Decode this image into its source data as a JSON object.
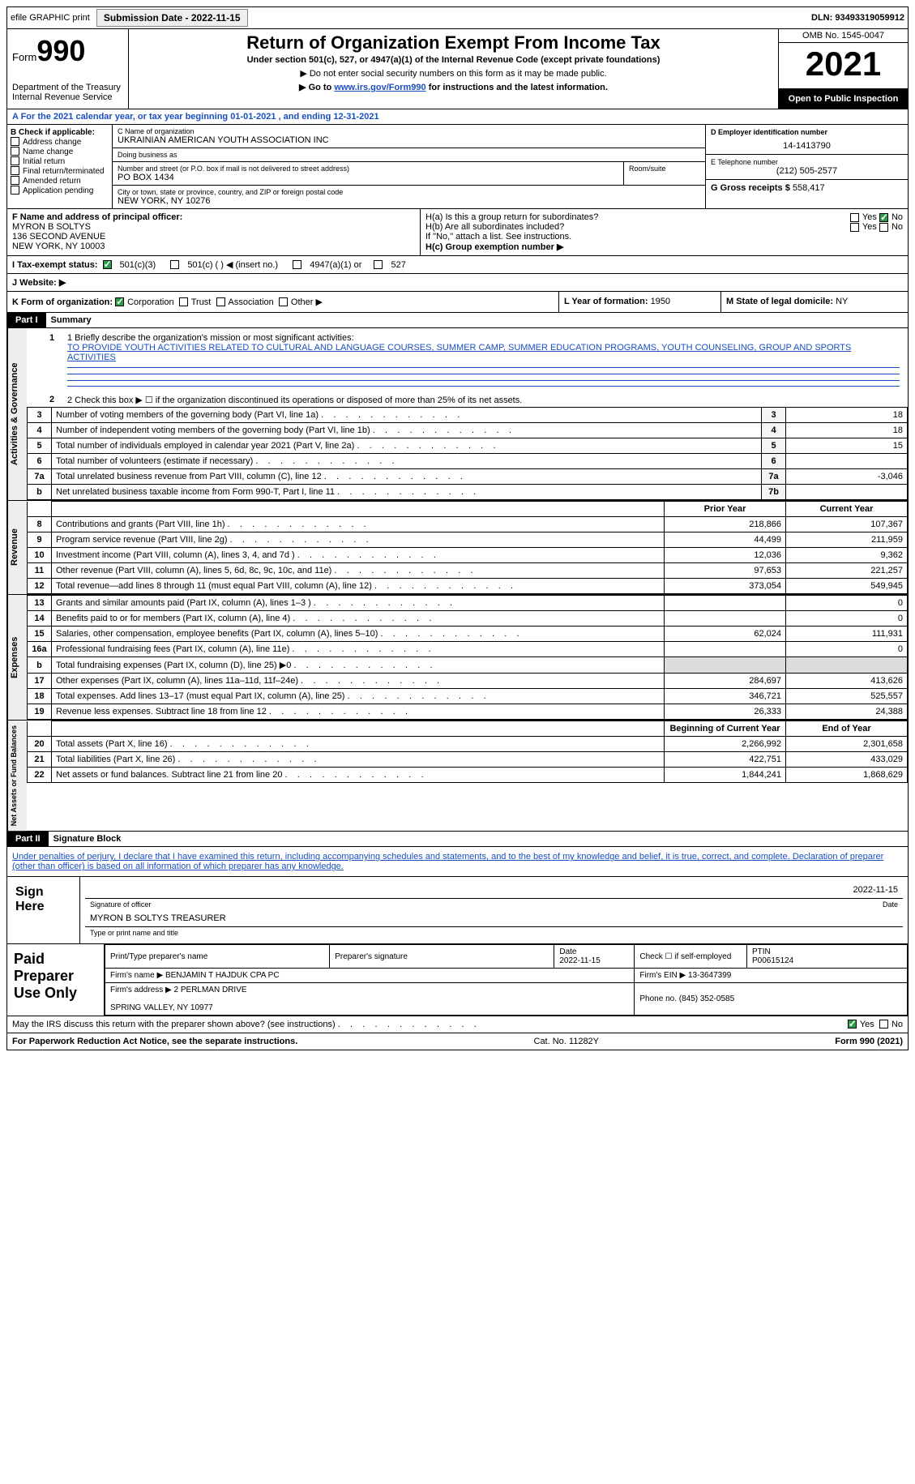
{
  "colors": {
    "link": "#1a4fbf",
    "check": "#2a9d4a",
    "black": "#000000",
    "grey": "#dddddd"
  },
  "topbar": {
    "efile": "efile GRAPHIC print",
    "submission_label": "Submission Date - 2022-11-15",
    "dln": "DLN: 93493319059912"
  },
  "header": {
    "form_prefix": "Form",
    "form_num": "990",
    "dept": "Department of the Treasury\nInternal Revenue Service",
    "title": "Return of Organization Exempt From Income Tax",
    "sub1": "Under section 501(c), 527, or 4947(a)(1) of the Internal Revenue Code (except private foundations)",
    "sub2": "▶ Do not enter social security numbers on this form as it may be made public.",
    "sub3_pre": "▶ Go to ",
    "sub3_link": "www.irs.gov/Form990",
    "sub3_post": " for instructions and the latest information.",
    "omb": "OMB No. 1545-0047",
    "year": "2021",
    "open": "Open to Public Inspection"
  },
  "rowA": "A  For the 2021 calendar year, or tax year beginning 01-01-2021   , and ending 12-31-2021",
  "secB": {
    "label": "B Check if applicable:",
    "opts": [
      "Address change",
      "Name change",
      "Initial return",
      "Final return/terminated",
      "Amended return",
      "Application pending"
    ],
    "c_name_lbl": "C Name of organization",
    "c_name": "UKRAINIAN AMERICAN YOUTH ASSOCIATION INC",
    "dba_lbl": "Doing business as",
    "dba": "",
    "addr_lbl": "Number and street (or P.O. box if mail is not delivered to street address)",
    "room_lbl": "Room/suite",
    "addr": "PO BOX 1434",
    "city_lbl": "City or town, state or province, country, and ZIP or foreign postal code",
    "city": "NEW YORK, NY  10276",
    "d_lbl": "D Employer identification number",
    "d": "14-1413790",
    "e_lbl": "E Telephone number",
    "e": "(212) 505-2577",
    "g_lbl": "G Gross receipts $ ",
    "g": "558,417"
  },
  "secF": {
    "f_lbl": "F Name and address of principal officer:",
    "f": "MYRON B SOLTYS\n136 SECOND AVENUE\nNEW YORK, NY  10003",
    "ha": "H(a)  Is this a group return for subordinates?",
    "ha_yes": "Yes",
    "ha_no": "No",
    "hb": "H(b)  Are all subordinates included?",
    "hb_note": "If \"No,\" attach a list. See instructions.",
    "hc": "H(c)  Group exemption number ▶"
  },
  "secI": {
    "lbl": "I    Tax-exempt status:",
    "o1": "501(c)(3)",
    "o2": "501(c) (  ) ◀ (insert no.)",
    "o3": "4947(a)(1) or",
    "o4": "527"
  },
  "secJ": "J   Website: ▶",
  "secK": {
    "k": "K Form of organization:",
    "opts": [
      "Corporation",
      "Trust",
      "Association",
      "Other ▶"
    ],
    "l_lbl": "L Year of formation: ",
    "l": "1950",
    "m_lbl": "M State of legal domicile: ",
    "m": "NY"
  },
  "part1": {
    "bar": "Part I",
    "title": "Summary"
  },
  "mission_lbl": "1  Briefly describe the organization's mission or most significant activities:",
  "mission": "TO PROVIDE YOUTH ACTIVITIES RELATED TO CULTURAL AND LANGUAGE COURSES, SUMMER CAMP, SUMMER EDUCATION PROGRAMS, YOUTH COUNSELING, GROUP AND SPORTS ACTIVITIES",
  "line2": "2    Check this box ▶ ☐  if the organization discontinued its operations or disposed of more than 25% of its net assets.",
  "sides": {
    "ag": "Activities & Governance",
    "rev": "Revenue",
    "exp": "Expenses",
    "net": "Net Assets or Fund Balances"
  },
  "govRows": [
    {
      "n": "3",
      "d": "Number of voting members of the governing body (Part VI, line 1a)",
      "vn": "3",
      "v": "18"
    },
    {
      "n": "4",
      "d": "Number of independent voting members of the governing body (Part VI, line 1b)",
      "vn": "4",
      "v": "18"
    },
    {
      "n": "5",
      "d": "Total number of individuals employed in calendar year 2021 (Part V, line 2a)",
      "vn": "5",
      "v": "15"
    },
    {
      "n": "6",
      "d": "Total number of volunteers (estimate if necessary)",
      "vn": "6",
      "v": ""
    },
    {
      "n": "7a",
      "d": "Total unrelated business revenue from Part VIII, column (C), line 12",
      "vn": "7a",
      "v": "-3,046"
    },
    {
      "n": "b",
      "d": "Net unrelated business taxable income from Form 990-T, Part I, line 11",
      "vn": "7b",
      "v": ""
    }
  ],
  "hdr_prior": "Prior Year",
  "hdr_cur": "Current Year",
  "revRows": [
    {
      "n": "8",
      "d": "Contributions and grants (Part VIII, line 1h)",
      "p": "218,866",
      "c": "107,367"
    },
    {
      "n": "9",
      "d": "Program service revenue (Part VIII, line 2g)",
      "p": "44,499",
      "c": "211,959"
    },
    {
      "n": "10",
      "d": "Investment income (Part VIII, column (A), lines 3, 4, and 7d )",
      "p": "12,036",
      "c": "9,362"
    },
    {
      "n": "11",
      "d": "Other revenue (Part VIII, column (A), lines 5, 6d, 8c, 9c, 10c, and 11e)",
      "p": "97,653",
      "c": "221,257"
    },
    {
      "n": "12",
      "d": "Total revenue—add lines 8 through 11 (must equal Part VIII, column (A), line 12)",
      "p": "373,054",
      "c": "549,945"
    }
  ],
  "expRows": [
    {
      "n": "13",
      "d": "Grants and similar amounts paid (Part IX, column (A), lines 1–3 )",
      "p": "",
      "c": "0"
    },
    {
      "n": "14",
      "d": "Benefits paid to or for members (Part IX, column (A), line 4)",
      "p": "",
      "c": "0"
    },
    {
      "n": "15",
      "d": "Salaries, other compensation, employee benefits (Part IX, column (A), lines 5–10)",
      "p": "62,024",
      "c": "111,931"
    },
    {
      "n": "16a",
      "d": "Professional fundraising fees (Part IX, column (A), line 11e)",
      "p": "",
      "c": "0"
    },
    {
      "n": "b",
      "d": "Total fundraising expenses (Part IX, column (D), line 25) ▶0",
      "p": "GREY",
      "c": "GREY"
    },
    {
      "n": "17",
      "d": "Other expenses (Part IX, column (A), lines 11a–11d, 11f–24e)",
      "p": "284,697",
      "c": "413,626"
    },
    {
      "n": "18",
      "d": "Total expenses. Add lines 13–17 (must equal Part IX, column (A), line 25)",
      "p": "346,721",
      "c": "525,557"
    },
    {
      "n": "19",
      "d": "Revenue less expenses. Subtract line 18 from line 12",
      "p": "26,333",
      "c": "24,388"
    }
  ],
  "hdr_beg": "Beginning of Current Year",
  "hdr_end": "End of Year",
  "netRows": [
    {
      "n": "20",
      "d": "Total assets (Part X, line 16)",
      "p": "2,266,992",
      "c": "2,301,658"
    },
    {
      "n": "21",
      "d": "Total liabilities (Part X, line 26)",
      "p": "422,751",
      "c": "433,029"
    },
    {
      "n": "22",
      "d": "Net assets or fund balances. Subtract line 21 from line 20",
      "p": "1,844,241",
      "c": "1,868,629"
    }
  ],
  "part2": {
    "bar": "Part II",
    "title": "Signature Block"
  },
  "sig_decl": "Under penalties of perjury, I declare that I have examined this return, including accompanying schedules and statements, and to the best of my knowledge and belief, it is true, correct, and complete. Declaration of preparer (other than officer) is based on all information of which preparer has any knowledge.",
  "sign_here": "Sign Here",
  "sig_of_officer": "Signature of officer",
  "sig_date": "2022-11-15",
  "sig_name": "MYRON B SOLTYS  TREASURER",
  "sig_name_lbl": "Type or print name and title",
  "paid": "Paid Preparer Use Only",
  "paid_tbl": {
    "h1": "Print/Type preparer's name",
    "h2": "Preparer's signature",
    "h3": "Date",
    "h3v": "2022-11-15",
    "h4": "Check ☐ if self-employed",
    "h5": "PTIN",
    "h5v": "P00615124",
    "firm_lbl": "Firm's name     ▶ ",
    "firm": "BENJAMIN T HAJDUK CPA PC",
    "ein_lbl": "Firm's EIN ▶ ",
    "ein": "13-3647399",
    "addr_lbl": "Firm's address ▶ ",
    "addr": "2 PERLMAN DRIVE\n\nSPRING VALLEY, NY  10977",
    "phone_lbl": "Phone no. ",
    "phone": "(845) 352-0585"
  },
  "irs_q": "May the IRS discuss this return with the preparer shown above? (see instructions)",
  "irs_yes": "Yes",
  "irs_no": "No",
  "paperwork": "For Paperwork Reduction Act Notice, see the separate instructions.",
  "cat": "Cat. No. 11282Y",
  "formfoot": "Form 990 (2021)"
}
